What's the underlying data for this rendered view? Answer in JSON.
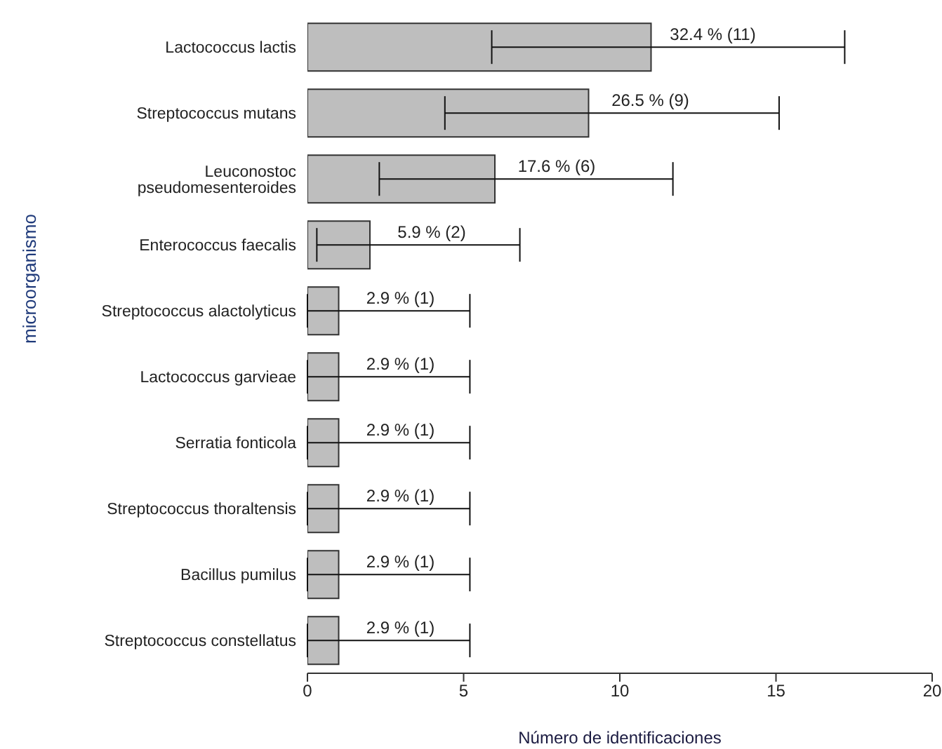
{
  "chart_data": {
    "type": "bar",
    "orientation": "horizontal",
    "xlabel": "Número de identificaciones",
    "ylabel": "microorganismo",
    "categories": [
      "Lactococcus lactis",
      "Streptococcus mutans",
      "Leuconostoc pseudomesenteroides",
      "Enterococcus faecalis",
      "Streptococcus alactolyticus",
      "Lactococcus garvieae",
      "Serratia fonticola",
      "Streptococcus thoraltensis",
      "Bacillus pumilus",
      "Streptococcus constellatus"
    ],
    "values": [
      11,
      9,
      6,
      2,
      1,
      1,
      1,
      1,
      1,
      1
    ],
    "errors": [
      [
        5.9,
        17.2
      ],
      [
        4.4,
        15.1
      ],
      [
        2.3,
        11.7
      ],
      [
        0.3,
        6.8
      ],
      [
        0,
        5.2
      ],
      [
        0,
        5.2
      ],
      [
        0,
        5.2
      ],
      [
        0,
        5.2
      ],
      [
        0,
        5.2
      ],
      [
        0,
        5.2
      ]
    ],
    "value_labels": [
      "32.4 % (11)",
      "26.5 % (9)",
      "17.6 % (6)",
      "5.9 % (2)",
      "2.9 % (1)",
      "2.9 % (1)",
      "2.9 % (1)",
      "2.9 % (1)",
      "2.9 % (1)",
      "2.9 % (1)"
    ],
    "color": "#bebebe",
    "xlim": [
      0,
      20
    ],
    "xticks": [
      0,
      5,
      10,
      15,
      20
    ]
  }
}
